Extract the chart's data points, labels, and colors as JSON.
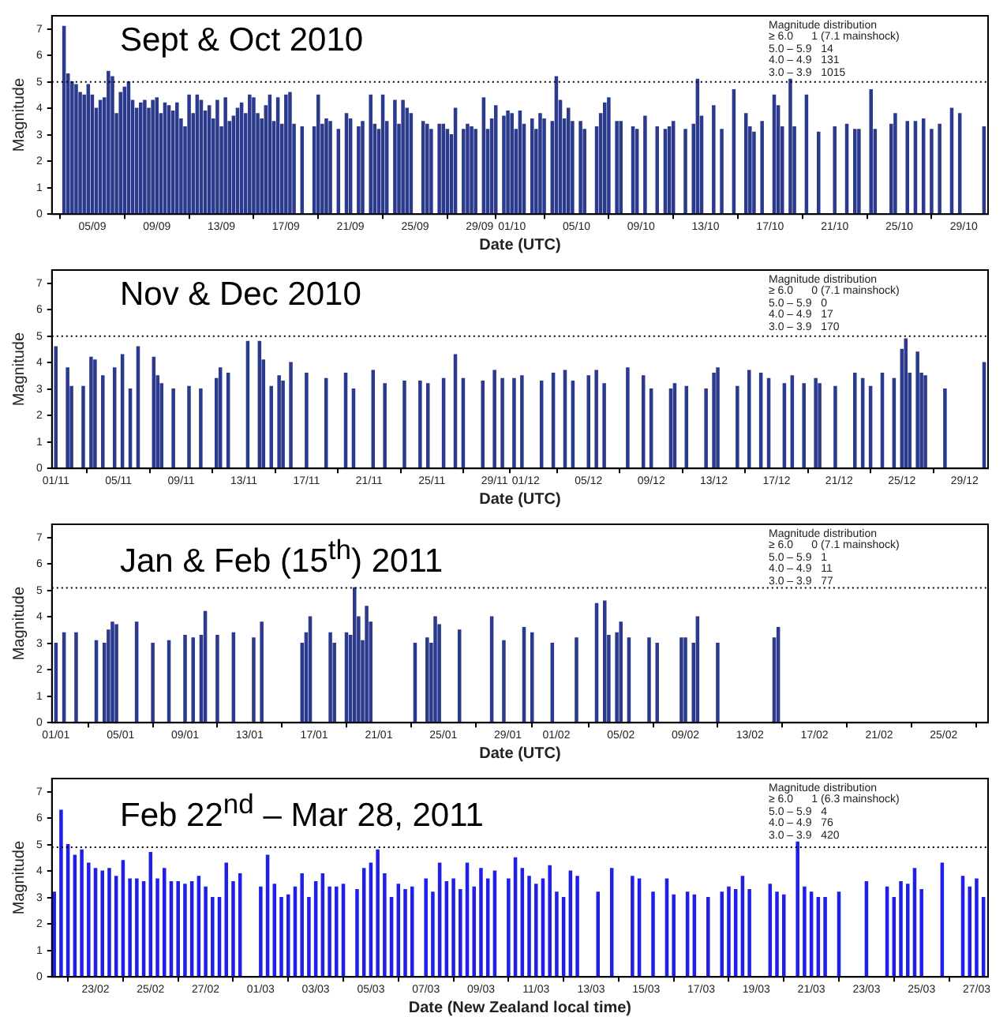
{
  "chart_data": [
    {
      "type": "bar",
      "title": "Sept & Oct 2010",
      "xlabel": "Date (UTC)",
      "ylabel": "Magnitude",
      "color": "#2b3a8c",
      "annotations": [
        "Magnitude distribution",
        "≥ 6.0      1 (7.1 mainshock)",
        "5.0 – 5.9   14",
        "4.0 – 4.9   131",
        "3.0 – 3.9   1015"
      ],
      "ref_lines": [
        {
          "axis": "y",
          "value": 5,
          "color": "#000000",
          "line_style": "dotted"
        }
      ],
      "xlim": [
        "2010-09-02T12:00",
        "2010-10-30T12:00"
      ],
      "xticks": [
        {
          "value": "2010-09-05",
          "label": "05/09"
        },
        {
          "value": "2010-09-09",
          "label": "09/09"
        },
        {
          "value": "2010-09-13",
          "label": "13/09"
        },
        {
          "value": "2010-09-17",
          "label": "17/09"
        },
        {
          "value": "2010-09-21",
          "label": "21/09"
        },
        {
          "value": "2010-09-25",
          "label": "25/09"
        },
        {
          "value": "2010-09-29",
          "label": "29/09"
        },
        {
          "value": "2010-10-01",
          "label": "01/10"
        },
        {
          "value": "2010-10-05",
          "label": "05/10"
        },
        {
          "value": "2010-10-09",
          "label": "09/10"
        },
        {
          "value": "2010-10-13",
          "label": "13/10"
        },
        {
          "value": "2010-10-17",
          "label": "17/10"
        },
        {
          "value": "2010-10-21",
          "label": "21/10"
        },
        {
          "value": "2010-10-25",
          "label": "25/10"
        },
        {
          "value": "2010-10-29",
          "label": "29/10"
        }
      ],
      "ylim": [
        0,
        7.5
      ],
      "yticks": [
        0,
        1,
        2,
        3,
        4,
        5,
        6,
        7
      ],
      "x": [
        "2010-09-03T06:00",
        "2010-09-03T12:00",
        "2010-09-03T18:00",
        "2010-09-04T00:00",
        "2010-09-04T06:00",
        "2010-09-04T12:00",
        "2010-09-04T18:00",
        "2010-09-05T00:00",
        "2010-09-05T06:00",
        "2010-09-05T12:00",
        "2010-09-05T18:00",
        "2010-09-06T00:00",
        "2010-09-06T06:00",
        "2010-09-06T12:00",
        "2010-09-06T18:00",
        "2010-09-07T00:00",
        "2010-09-07T06:00",
        "2010-09-07T12:00",
        "2010-09-07T18:00",
        "2010-09-08T00:00",
        "2010-09-08T06:00",
        "2010-09-08T12:00",
        "2010-09-08T18:00",
        "2010-09-09T00:00",
        "2010-09-09T06:00",
        "2010-09-09T12:00",
        "2010-09-09T18:00",
        "2010-09-10T00:00",
        "2010-09-10T06:00",
        "2010-09-10T12:00",
        "2010-09-10T18:00",
        "2010-09-11T00:00",
        "2010-09-11T06:00",
        "2010-09-11T12:00",
        "2010-09-11T18:00",
        "2010-09-12T00:00",
        "2010-09-12T06:00",
        "2010-09-12T12:00",
        "2010-09-12T18:00",
        "2010-09-13T00:00",
        "2010-09-13T06:00",
        "2010-09-13T12:00",
        "2010-09-13T18:00",
        "2010-09-14T00:00",
        "2010-09-14T06:00",
        "2010-09-14T12:00",
        "2010-09-14T18:00",
        "2010-09-15T00:00",
        "2010-09-15T06:00",
        "2010-09-15T12:00",
        "2010-09-15T18:00",
        "2010-09-16T00:00",
        "2010-09-16T06:00",
        "2010-09-16T12:00",
        "2010-09-16T18:00",
        "2010-09-17T00:00",
        "2010-09-17T06:00",
        "2010-09-17T12:00",
        "2010-09-18T00:00",
        "2010-09-18T18:00",
        "2010-09-19T00:00",
        "2010-09-19T06:00",
        "2010-09-19T12:00",
        "2010-09-19T18:00",
        "2010-09-20T06:00",
        "2010-09-20T18:00",
        "2010-09-21T00:00",
        "2010-09-21T12:00",
        "2010-09-21T18:00",
        "2010-09-22T06:00",
        "2010-09-22T12:00",
        "2010-09-22T18:00",
        "2010-09-23T00:00",
        "2010-09-23T06:00",
        "2010-09-23T18:00",
        "2010-09-24T00:00",
        "2010-09-24T06:00",
        "2010-09-24T12:00",
        "2010-09-24T18:00",
        "2010-09-25T12:00",
        "2010-09-25T18:00",
        "2010-09-26T00:00",
        "2010-09-26T12:00",
        "2010-09-26T18:00",
        "2010-09-27T00:00",
        "2010-09-27T06:00",
        "2010-09-27T12:00",
        "2010-09-28T00:00",
        "2010-09-28T06:00",
        "2010-09-28T12:00",
        "2010-09-28T18:00",
        "2010-09-29T06:00",
        "2010-09-29T12:00",
        "2010-09-29T18:00",
        "2010-09-30T00:00",
        "2010-09-30T12:00",
        "2010-09-30T18:00",
        "2010-10-01T00:00",
        "2010-10-01T06:00",
        "2010-10-01T12:00",
        "2010-10-01T18:00",
        "2010-10-02T06:00",
        "2010-10-02T12:00",
        "2010-10-02T18:00",
        "2010-10-03T00:00",
        "2010-10-03T12:00",
        "2010-10-03T18:00",
        "2010-10-04T00:00",
        "2010-10-04T06:00",
        "2010-10-04T12:00",
        "2010-10-04T18:00",
        "2010-10-05T06:00",
        "2010-10-05T12:00",
        "2010-10-06T06:00",
        "2010-10-06T12:00",
        "2010-10-06T18:00",
        "2010-10-07T00:00",
        "2010-10-07T12:00",
        "2010-10-07T18:00",
        "2010-10-08T12:00",
        "2010-10-08T18:00",
        "2010-10-09T06:00",
        "2010-10-10T00:00",
        "2010-10-10T12:00",
        "2010-10-10T18:00",
        "2010-10-11T00:00",
        "2010-10-11T18:00",
        "2010-10-12T06:00",
        "2010-10-12T12:00",
        "2010-10-12T18:00",
        "2010-10-13T12:00",
        "2010-10-14T00:00",
        "2010-10-14T18:00",
        "2010-10-15T12:00",
        "2010-10-15T18:00",
        "2010-10-16T00:00",
        "2010-10-16T12:00",
        "2010-10-17T06:00",
        "2010-10-17T12:00",
        "2010-10-17T18:00",
        "2010-10-18T06:00",
        "2010-10-18T12:00",
        "2010-10-19T06:00",
        "2010-10-20T00:00",
        "2010-10-21T00:00",
        "2010-10-21T18:00",
        "2010-10-22T06:00",
        "2010-10-22T12:00",
        "2010-10-23T06:00",
        "2010-10-23T12:00",
        "2010-10-24T12:00",
        "2010-10-24T18:00",
        "2010-10-25T12:00",
        "2010-10-26T00:00",
        "2010-10-26T12:00",
        "2010-10-27T00:00",
        "2010-10-27T12:00",
        "2010-10-28T06:00",
        "2010-10-28T18:00",
        "2010-10-30T06:00"
      ],
      "values": [
        7.1,
        5.3,
        5.0,
        4.9,
        4.6,
        4.5,
        4.9,
        4.5,
        4.0,
        4.3,
        4.4,
        5.4,
        5.2,
        3.8,
        4.6,
        4.8,
        5.0,
        4.3,
        4.0,
        4.2,
        4.3,
        4.0,
        4.3,
        4.4,
        3.8,
        4.2,
        4.1,
        3.9,
        4.2,
        3.6,
        3.3,
        4.5,
        3.8,
        4.5,
        4.3,
        3.9,
        4.1,
        3.6,
        4.3,
        3.3,
        4.4,
        3.5,
        3.7,
        4.0,
        4.2,
        3.8,
        4.5,
        4.4,
        3.8,
        3.6,
        4.1,
        4.5,
        3.5,
        4.4,
        3.4,
        4.5,
        4.6,
        3.4,
        3.3,
        3.3,
        4.5,
        3.4,
        3.6,
        3.5,
        3.2,
        3.8,
        3.6,
        3.3,
        3.5,
        4.5,
        3.4,
        3.2,
        4.5,
        3.5,
        4.3,
        3.4,
        4.3,
        4.0,
        3.8,
        3.5,
        3.4,
        3.2,
        3.4,
        3.4,
        3.2,
        3.0,
        4.0,
        3.2,
        3.4,
        3.3,
        3.2,
        4.4,
        3.2,
        3.6,
        4.1,
        3.7,
        3.9,
        3.8,
        3.2,
        3.9,
        3.4,
        3.6,
        3.2,
        3.8,
        3.6,
        3.5,
        5.2,
        4.3,
        3.6,
        4.0,
        3.5,
        3.5,
        3.2,
        3.3,
        3.8,
        4.2,
        4.4,
        3.5,
        3.5,
        3.3,
        3.2,
        3.7,
        3.3,
        3.2,
        3.3,
        3.5,
        3.2,
        3.4,
        5.1,
        3.7,
        4.1,
        3.2,
        4.7,
        3.8,
        3.3,
        3.1,
        3.5,
        4.5,
        4.1,
        3.3,
        5.1,
        3.3,
        4.5,
        3.1,
        3.3,
        3.4,
        3.2,
        3.2,
        4.7,
        3.2,
        3.4,
        3.8,
        3.5,
        3.5,
        3.6,
        3.2,
        3.4,
        4.0,
        3.8,
        3.3
      ]
    },
    {
      "type": "bar",
      "title": "Nov & Dec 2010",
      "xlabel": "Date (UTC)",
      "ylabel": "Magnitude",
      "color": "#2b3a8c",
      "annotations": [
        "Magnitude distribution",
        "≥ 6.0      0 (7.1 mainshock)",
        "5.0 – 5.9   0",
        "4.0 – 4.9   17",
        "3.0 – 3.9   170"
      ],
      "ref_lines": [
        {
          "axis": "y",
          "value": 5,
          "color": "#000000",
          "line_style": "dotted"
        }
      ],
      "xlim": [
        "2010-10-31T18:00",
        "2010-12-30T12:00"
      ],
      "xticks": [
        {
          "value": "2010-11-01",
          "label": "01/11"
        },
        {
          "value": "2010-11-05",
          "label": "05/11"
        },
        {
          "value": "2010-11-09",
          "label": "09/11"
        },
        {
          "value": "2010-11-13",
          "label": "13/11"
        },
        {
          "value": "2010-11-17",
          "label": "17/11"
        },
        {
          "value": "2010-11-21",
          "label": "21/11"
        },
        {
          "value": "2010-11-25",
          "label": "25/11"
        },
        {
          "value": "2010-11-29",
          "label": "29/11"
        },
        {
          "value": "2010-12-01",
          "label": "01/12"
        },
        {
          "value": "2010-12-05",
          "label": "05/12"
        },
        {
          "value": "2010-12-09",
          "label": "09/12"
        },
        {
          "value": "2010-12-13",
          "label": "13/12"
        },
        {
          "value": "2010-12-17",
          "label": "17/12"
        },
        {
          "value": "2010-12-21",
          "label": "21/12"
        },
        {
          "value": "2010-12-25",
          "label": "25/12"
        },
        {
          "value": "2010-12-29",
          "label": "29/12"
        }
      ],
      "ylim": [
        0,
        7.5
      ],
      "yticks": [
        0,
        1,
        2,
        3,
        4,
        5,
        6,
        7
      ],
      "x": [
        "2010-11-01T00:00",
        "2010-11-01T18:00",
        "2010-11-02T00:00",
        "2010-11-02T18:00",
        "2010-11-03T06:00",
        "2010-11-03T12:00",
        "2010-11-04T00:00",
        "2010-11-04T18:00",
        "2010-11-05T06:00",
        "2010-11-05T18:00",
        "2010-11-06T06:00",
        "2010-11-07T06:00",
        "2010-11-07T12:00",
        "2010-11-07T18:00",
        "2010-11-08T12:00",
        "2010-11-09T12:00",
        "2010-11-10T06:00",
        "2010-11-11T06:00",
        "2010-11-11T12:00",
        "2010-11-12T00:00",
        "2010-11-13T06:00",
        "2010-11-14T00:00",
        "2010-11-14T06:00",
        "2010-11-14T18:00",
        "2010-11-15T06:00",
        "2010-11-15T12:00",
        "2010-11-16T00:00",
        "2010-11-17T00:00",
        "2010-11-18T06:00",
        "2010-11-19T12:00",
        "2010-11-20T00:00",
        "2010-11-21T06:00",
        "2010-11-22T00:00",
        "2010-11-23T06:00",
        "2010-11-24T06:00",
        "2010-11-24T18:00",
        "2010-11-25T18:00",
        "2010-11-26T12:00",
        "2010-11-27T00:00",
        "2010-11-28T06:00",
        "2010-11-29T00:00",
        "2010-11-29T12:00",
        "2010-11-30T06:00",
        "2010-11-30T18:00",
        "2010-12-02T00:00",
        "2010-12-02T18:00",
        "2010-12-03T12:00",
        "2010-12-04T00:00",
        "2010-12-05T00:00",
        "2010-12-05T12:00",
        "2010-12-06T00:00",
        "2010-12-07T12:00",
        "2010-12-08T12:00",
        "2010-12-09T00:00",
        "2010-12-10T06:00",
        "2010-12-10T12:00",
        "2010-12-11T06:00",
        "2010-12-12T12:00",
        "2010-12-13T00:00",
        "2010-12-13T06:00",
        "2010-12-14T12:00",
        "2010-12-15T06:00",
        "2010-12-16T00:00",
        "2010-12-16T12:00",
        "2010-12-17T12:00",
        "2010-12-18T00:00",
        "2010-12-18T18:00",
        "2010-12-19T12:00",
        "2010-12-19T18:00",
        "2010-12-20T18:00",
        "2010-12-22T00:00",
        "2010-12-22T12:00",
        "2010-12-23T00:00",
        "2010-12-23T18:00",
        "2010-12-24T12:00",
        "2010-12-25T00:00",
        "2010-12-25T06:00",
        "2010-12-25T12:00",
        "2010-12-26T00:00",
        "2010-12-26T06:00",
        "2010-12-26T12:00",
        "2010-12-27T18:00",
        "2010-12-30T06:00"
      ],
      "values": [
        4.6,
        3.8,
        3.1,
        3.1,
        4.2,
        4.1,
        3.5,
        3.8,
        4.3,
        3.0,
        4.6,
        4.2,
        3.5,
        3.2,
        3.0,
        3.1,
        3.0,
        3.4,
        3.8,
        3.6,
        4.8,
        4.8,
        4.1,
        3.1,
        3.5,
        3.3,
        4.0,
        3.6,
        3.4,
        3.6,
        3.0,
        3.7,
        3.2,
        3.3,
        3.3,
        3.2,
        3.4,
        4.3,
        3.4,
        3.3,
        3.7,
        3.4,
        3.4,
        3.5,
        3.3,
        3.6,
        3.7,
        3.3,
        3.5,
        3.7,
        3.2,
        3.8,
        3.5,
        3.0,
        3.0,
        3.2,
        3.1,
        3.0,
        3.6,
        3.8,
        3.1,
        3.7,
        3.6,
        3.4,
        3.2,
        3.5,
        3.2,
        3.4,
        3.2,
        3.1,
        3.6,
        3.4,
        3.1,
        3.6,
        3.4,
        4.5,
        4.9,
        3.6,
        4.4,
        3.6,
        3.5,
        3.0,
        4.0
      ]
    },
    {
      "type": "bar",
      "title": "Jan & Feb (15$^{th}$) 2011",
      "xlabel": "Date (UTC)",
      "ylabel": "Magnitude",
      "color": "#2b3a8c",
      "annotations": [
        "Magnitude distribution",
        "≥ 6.0      0 (7.1 mainshock)",
        "5.0 – 5.9   1",
        "4.0 – 4.9   11",
        "3.0 – 3.9   77"
      ],
      "ref_lines": [
        {
          "axis": "y",
          "value": 5.1,
          "color": "#000000",
          "line_style": "dotted"
        }
      ],
      "xlim": [
        "2010-12-31T18:00",
        "2011-02-27T18:00"
      ],
      "xticks": [
        {
          "value": "2011-01-01",
          "label": "01/01"
        },
        {
          "value": "2011-01-05",
          "label": "05/01"
        },
        {
          "value": "2011-01-09",
          "label": "09/01"
        },
        {
          "value": "2011-01-13",
          "label": "13/01"
        },
        {
          "value": "2011-01-17",
          "label": "17/01"
        },
        {
          "value": "2011-01-21",
          "label": "21/01"
        },
        {
          "value": "2011-01-25",
          "label": "25/01"
        },
        {
          "value": "2011-01-29",
          "label": "29/01"
        },
        {
          "value": "2011-02-01",
          "label": "01/02"
        },
        {
          "value": "2011-02-05",
          "label": "05/02"
        },
        {
          "value": "2011-02-09",
          "label": "09/02"
        },
        {
          "value": "2011-02-13",
          "label": "13/02"
        },
        {
          "value": "2011-02-17",
          "label": "17/02"
        },
        {
          "value": "2011-02-21",
          "label": "21/02"
        },
        {
          "value": "2011-02-25",
          "label": "25/02"
        }
      ],
      "ylim": [
        0,
        7.5
      ],
      "yticks": [
        0,
        1,
        2,
        3,
        4,
        5,
        6,
        7
      ],
      "x": [
        "2011-01-01T00:00",
        "2011-01-01T12:00",
        "2011-01-02T06:00",
        "2011-01-03T12:00",
        "2011-01-04T00:00",
        "2011-01-04T06:00",
        "2011-01-04T12:00",
        "2011-01-04T18:00",
        "2011-01-06T00:00",
        "2011-01-07T00:00",
        "2011-01-08T00:00",
        "2011-01-09T00:00",
        "2011-01-09T12:00",
        "2011-01-10T00:00",
        "2011-01-10T06:00",
        "2011-01-11T00:00",
        "2011-01-12T00:00",
        "2011-01-13T06:00",
        "2011-01-13T18:00",
        "2011-01-16T06:00",
        "2011-01-16T12:00",
        "2011-01-16T18:00",
        "2011-01-18T00:00",
        "2011-01-18T06:00",
        "2011-01-19T00:00",
        "2011-01-19T06:00",
        "2011-01-19T12:00",
        "2011-01-19T18:00",
        "2011-01-20T00:00",
        "2011-01-20T06:00",
        "2011-01-20T12:00",
        "2011-01-23T06:00",
        "2011-01-24T00:00",
        "2011-01-24T06:00",
        "2011-01-24T12:00",
        "2011-01-24T18:00",
        "2011-01-26T00:00",
        "2011-01-28T00:00",
        "2011-01-28T18:00",
        "2011-01-30T00:00",
        "2011-01-30T12:00",
        "2011-01-31T18:00",
        "2011-02-02T06:00",
        "2011-02-03T12:00",
        "2011-02-04T00:00",
        "2011-02-04T06:00",
        "2011-02-04T18:00",
        "2011-02-05T00:00",
        "2011-02-05T12:00",
        "2011-02-06T18:00",
        "2011-02-07T06:00",
        "2011-02-08T18:00",
        "2011-02-09T00:00",
        "2011-02-09T12:00",
        "2011-02-09T18:00",
        "2011-02-11T00:00",
        "2011-02-14T12:00",
        "2011-02-14T18:00"
      ],
      "values": [
        3.0,
        3.4,
        3.4,
        3.1,
        3.0,
        3.5,
        3.8,
        3.7,
        3.8,
        3.0,
        3.1,
        3.3,
        3.2,
        3.3,
        4.2,
        3.3,
        3.4,
        3.2,
        3.8,
        3.0,
        3.4,
        4.0,
        3.4,
        3.0,
        3.4,
        3.3,
        5.1,
        4.0,
        3.1,
        4.4,
        3.8,
        3.0,
        3.2,
        3.0,
        4.0,
        3.7,
        3.5,
        4.0,
        3.1,
        3.6,
        3.4,
        3.0,
        3.2,
        4.5,
        4.6,
        3.3,
        3.4,
        3.8,
        3.2,
        3.2,
        3.0,
        3.2,
        3.2,
        3.0,
        4.0,
        3.0,
        3.2,
        3.6
      ]
    },
    {
      "type": "bar",
      "title": "Feb 22$^{nd}$ – Mar 28, 2011",
      "xlabel": "Date (New Zealand local time)",
      "ylabel": "Magnitude",
      "color": "#1f1fe6",
      "annotations": [
        "Magnitude distribution",
        "≥ 6.0      1 (6.3 mainshock)",
        "5.0 – 5.9   4",
        "4.0 – 4.9   76",
        "3.0 – 3.9   420"
      ],
      "ref_lines": [
        {
          "axis": "y",
          "value": 4.9,
          "color": "#000000",
          "line_style": "dotted"
        }
      ],
      "xlim": [
        "2011-02-21T10:00",
        "2011-03-27T10:00"
      ],
      "xticks": [
        {
          "value": "2011-02-23",
          "label": "23/02"
        },
        {
          "value": "2011-02-25",
          "label": "25/02"
        },
        {
          "value": "2011-02-27",
          "label": "27/02"
        },
        {
          "value": "2011-03-01",
          "label": "01/03"
        },
        {
          "value": "2011-03-03",
          "label": "03/03"
        },
        {
          "value": "2011-03-05",
          "label": "05/03"
        },
        {
          "value": "2011-03-07",
          "label": "07/03"
        },
        {
          "value": "2011-03-09",
          "label": "09/03"
        },
        {
          "value": "2011-03-11",
          "label": "11/03"
        },
        {
          "value": "2011-03-13",
          "label": "13/03"
        },
        {
          "value": "2011-03-15",
          "label": "15/03"
        },
        {
          "value": "2011-03-17",
          "label": "17/03"
        },
        {
          "value": "2011-03-19",
          "label": "19/03"
        },
        {
          "value": "2011-03-21",
          "label": "21/03"
        },
        {
          "value": "2011-03-23",
          "label": "23/03"
        },
        {
          "value": "2011-03-25",
          "label": "25/03"
        },
        {
          "value": "2011-03-27",
          "label": "27/03"
        }
      ],
      "ylim": [
        0,
        7.5
      ],
      "yticks": [
        0,
        1,
        2,
        3,
        4,
        5,
        6,
        7
      ],
      "x": [
        "2011-02-21T12:00",
        "2011-02-21T18:00",
        "2011-02-22T00:00",
        "2011-02-22T06:00",
        "2011-02-22T12:00",
        "2011-02-22T18:00",
        "2011-02-23T00:00",
        "2011-02-23T06:00",
        "2011-02-23T12:00",
        "2011-02-23T18:00",
        "2011-02-24T00:00",
        "2011-02-24T06:00",
        "2011-02-24T12:00",
        "2011-02-24T18:00",
        "2011-02-25T00:00",
        "2011-02-25T06:00",
        "2011-02-25T12:00",
        "2011-02-25T18:00",
        "2011-02-26T00:00",
        "2011-02-26T06:00",
        "2011-02-26T12:00",
        "2011-02-26T18:00",
        "2011-02-27T00:00",
        "2011-02-27T06:00",
        "2011-02-27T12:00",
        "2011-02-27T18:00",
        "2011-02-28T00:00",
        "2011-02-28T06:00",
        "2011-03-01T00:00",
        "2011-03-01T06:00",
        "2011-03-01T12:00",
        "2011-03-01T18:00",
        "2011-03-02T00:00",
        "2011-03-02T06:00",
        "2011-03-02T12:00",
        "2011-03-02T18:00",
        "2011-03-03T00:00",
        "2011-03-03T06:00",
        "2011-03-03T12:00",
        "2011-03-03T18:00",
        "2011-03-04T00:00",
        "2011-03-04T12:00",
        "2011-03-04T18:00",
        "2011-03-05T00:00",
        "2011-03-05T06:00",
        "2011-03-05T12:00",
        "2011-03-05T18:00",
        "2011-03-06T00:00",
        "2011-03-06T06:00",
        "2011-03-06T12:00",
        "2011-03-07T00:00",
        "2011-03-07T06:00",
        "2011-03-07T12:00",
        "2011-03-07T18:00",
        "2011-03-08T00:00",
        "2011-03-08T06:00",
        "2011-03-08T12:00",
        "2011-03-08T18:00",
        "2011-03-09T00:00",
        "2011-03-09T06:00",
        "2011-03-09T12:00",
        "2011-03-10T00:00",
        "2011-03-10T06:00",
        "2011-03-10T12:00",
        "2011-03-10T18:00",
        "2011-03-11T00:00",
        "2011-03-11T06:00",
        "2011-03-11T12:00",
        "2011-03-11T18:00",
        "2011-03-12T00:00",
        "2011-03-12T06:00",
        "2011-03-12T12:00",
        "2011-03-13T06:00",
        "2011-03-13T18:00",
        "2011-03-14T12:00",
        "2011-03-14T18:00",
        "2011-03-15T06:00",
        "2011-03-15T18:00",
        "2011-03-16T00:00",
        "2011-03-16T12:00",
        "2011-03-16T18:00",
        "2011-03-17T06:00",
        "2011-03-17T18:00",
        "2011-03-18T00:00",
        "2011-03-18T06:00",
        "2011-03-18T12:00",
        "2011-03-18T18:00",
        "2011-03-19T12:00",
        "2011-03-19T18:00",
        "2011-03-20T00:00",
        "2011-03-20T12:00",
        "2011-03-20T18:00",
        "2011-03-21T00:00",
        "2011-03-21T06:00",
        "2011-03-21T12:00",
        "2011-03-22T00:00",
        "2011-03-23T00:00",
        "2011-03-23T18:00",
        "2011-03-24T00:00",
        "2011-03-24T06:00",
        "2011-03-24T12:00",
        "2011-03-24T18:00",
        "2011-03-25T00:00",
        "2011-03-25T18:00",
        "2011-03-26T12:00",
        "2011-03-26T18:00",
        "2011-03-27T00:00",
        "2011-03-27T06:00"
      ],
      "values": [
        3.2,
        6.3,
        5.0,
        4.6,
        4.8,
        4.3,
        4.1,
        4.0,
        4.1,
        3.8,
        4.4,
        3.7,
        3.7,
        3.6,
        4.7,
        3.7,
        4.1,
        3.6,
        3.6,
        3.5,
        3.6,
        3.8,
        3.4,
        3.0,
        3.0,
        4.3,
        3.6,
        3.9,
        3.4,
        4.6,
        3.5,
        3.0,
        3.1,
        3.4,
        3.9,
        3.0,
        3.6,
        3.9,
        3.4,
        3.4,
        3.5,
        3.3,
        4.1,
        4.3,
        4.8,
        3.9,
        3.0,
        3.5,
        3.3,
        3.4,
        3.7,
        3.2,
        4.3,
        3.6,
        3.7,
        3.3,
        4.3,
        3.4,
        4.1,
        3.7,
        4.0,
        3.7,
        4.5,
        4.1,
        3.8,
        3.5,
        3.7,
        4.2,
        3.2,
        3.0,
        4.0,
        3.8,
        3.2,
        4.1,
        3.8,
        3.7,
        3.2,
        3.7,
        3.1,
        3.2,
        3.1,
        3.0,
        3.2,
        3.4,
        3.3,
        3.8,
        3.3,
        3.5,
        3.2,
        3.1,
        5.1,
        3.4,
        3.2,
        3.0,
        3.0,
        3.2,
        3.6,
        3.4,
        3.0,
        3.6,
        3.5,
        4.1,
        3.3,
        4.3,
        3.8,
        3.4,
        3.7,
        3.0
      ]
    }
  ]
}
